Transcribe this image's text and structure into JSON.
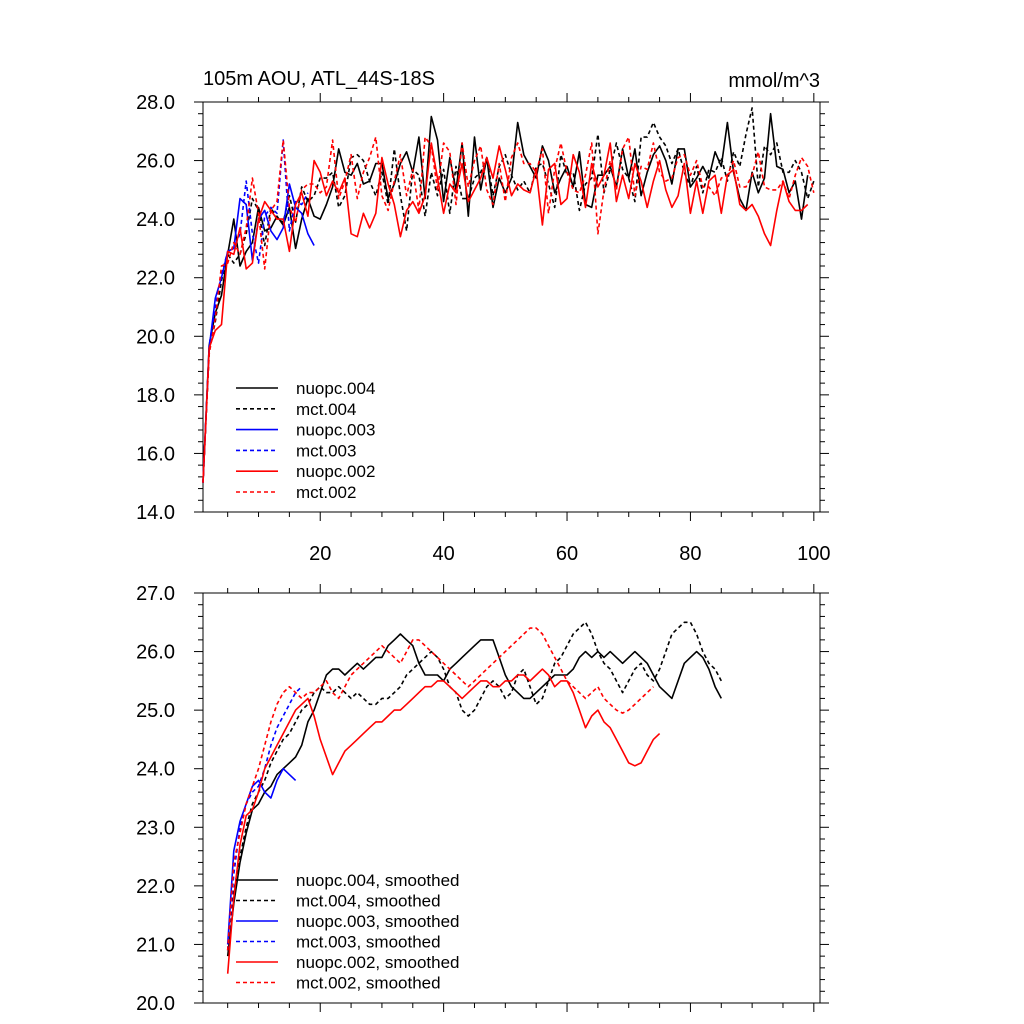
{
  "chart_data": [
    {
      "type": "line",
      "title": "105m AOU, ATL_44S-18S",
      "units": "mmol/m^3",
      "xlim": [
        1,
        101
      ],
      "ylim": [
        14,
        28
      ],
      "x_ticks": [
        20,
        40,
        60,
        80,
        100
      ],
      "x_tick_labels": [
        "20",
        "40",
        "60",
        "80",
        "100"
      ],
      "y_ticks": [
        14,
        16,
        18,
        20,
        22,
        24,
        26,
        28
      ],
      "y_tick_labels": [
        "14.0",
        "16.0",
        "18.0",
        "20.0",
        "22.0",
        "24.0",
        "26.0",
        "28.0"
      ],
      "legend_position": "lower-left",
      "series": [
        {
          "name": "nuopc.004",
          "color": "#000000",
          "dash": "solid",
          "x_start": 1,
          "values": [
            15.0,
            19.7,
            20.8,
            21.4,
            22.8,
            24.0,
            22.4,
            22.9,
            23.2,
            24.4,
            23.6,
            23.7,
            24.1,
            23.8,
            24.4,
            23.0,
            24.0,
            24.7,
            24.1,
            24.0,
            24.5,
            25.1,
            26.4,
            25.6,
            25.5,
            25.9,
            25.2,
            25.3,
            25.9,
            25.9,
            24.7,
            25.2,
            25.9,
            26.3,
            25.6,
            26.8,
            24.7,
            27.5,
            26.7,
            24.6,
            26.1,
            25.0,
            26.6,
            24.1,
            26.8,
            25.0,
            26.1,
            24.4,
            25.4,
            24.9,
            25.4,
            27.3,
            26.2,
            25.8,
            25.4,
            26.5,
            26.0,
            24.9,
            25.4,
            25.8,
            25.1,
            26.3,
            24.5,
            24.4,
            25.5,
            25.5,
            25.8,
            25.1,
            26.4,
            25.4,
            26.4,
            24.8,
            25.6,
            26.2,
            26.5,
            26.0,
            25.2,
            26.4,
            26.4,
            25.1,
            25.4,
            25.8,
            25.4,
            26.3,
            25.8,
            27.3,
            25.6,
            24.7,
            24.3,
            25.6,
            24.9,
            25.4,
            27.6,
            25.8,
            25.7,
            24.9,
            25.3,
            24.0,
            25.5
          ]
        },
        {
          "name": "mct.004",
          "color": "#000000",
          "dash": "dashed",
          "x_start": 1,
          "values": [
            15.0,
            19.5,
            20.5,
            21.9,
            22.8,
            22.5,
            22.8,
            23.5,
            24.7,
            24.3,
            23.1,
            24.4,
            24.0,
            23.9,
            24.8,
            23.9,
            25.1,
            24.6,
            24.8,
            25.4,
            25.4,
            25.6,
            24.4,
            24.8,
            26.1,
            26.2,
            26.0,
            25.3,
            24.8,
            25.6,
            24.5,
            26.4,
            24.8,
            23.6,
            25.7,
            25.5,
            24.1,
            25.6,
            24.8,
            25.7,
            24.2,
            25.8,
            24.7,
            24.7,
            25.4,
            25.6,
            26.1,
            24.8,
            25.8,
            26.2,
            25.5,
            25.0,
            25.3,
            24.9,
            25.8,
            25.9,
            25.2,
            24.4,
            26.2,
            25.5,
            25.6,
            24.3,
            25.2,
            25.4,
            26.9,
            24.9,
            25.7,
            26.6,
            25.7,
            25.4,
            24.6,
            26.8,
            26.8,
            27.3,
            26.8,
            26.5,
            25.9,
            26.4,
            25.6,
            25.1,
            25.8,
            24.9,
            25.7,
            25.6,
            26.1,
            25.3,
            26.3,
            25.8,
            26.9,
            27.8,
            25.1,
            26.5,
            26.2,
            26.6,
            25.6,
            25.6,
            26.0,
            25.6,
            24.7,
            25.3
          ]
        },
        {
          "name": "nuopc.003",
          "color": "#0000ff",
          "dash": "solid",
          "x_start": 1,
          "values": [
            15.0,
            19.6,
            21.3,
            22.0,
            22.9,
            23.0,
            24.7,
            24.5,
            22.6,
            24.0,
            24.3,
            23.6,
            23.3,
            23.7,
            25.2,
            24.4,
            24.2,
            23.5,
            23.1
          ]
        },
        {
          "name": "mct.003",
          "color": "#0000ff",
          "dash": "dashed",
          "x_start": 1,
          "values": [
            15.0,
            19.7,
            21.0,
            22.1,
            22.9,
            23.0,
            23.5,
            25.3,
            23.5,
            22.5,
            24.1,
            24.4,
            24.2,
            26.7,
            23.6,
            24.6,
            24.5,
            24.9
          ]
        },
        {
          "name": "nuopc.002",
          "color": "#ff0000",
          "dash": "solid",
          "x_start": 1,
          "values": [
            15.0,
            19.6,
            20.2,
            20.4,
            22.9,
            22.8,
            23.7,
            22.3,
            22.5,
            24.0,
            24.6,
            24.3,
            24.0,
            24.0,
            22.9,
            24.5,
            24.9,
            24.1,
            26.0,
            25.6,
            24.8,
            25.3,
            24.9,
            25.4,
            23.5,
            23.4,
            24.2,
            23.7,
            24.2,
            26.1,
            25.2,
            24.5,
            23.4,
            24.3,
            24.6,
            24.2,
            24.8,
            26.6,
            25.4,
            24.2,
            25.2,
            24.9,
            25.9,
            24.6,
            25.0,
            25.4,
            26.1,
            25.4,
            26.5,
            25.7,
            24.8,
            25.2,
            25.0,
            24.9,
            25.7,
            23.8,
            25.7,
            25.9,
            24.5,
            24.7,
            26.2,
            25.6,
            24.4,
            25.9,
            25.1,
            25.5,
            26.6,
            24.6,
            25.5,
            24.7,
            25.9,
            25.3,
            24.4,
            25.3,
            26.0,
            25.0,
            24.4,
            24.8,
            25.9,
            24.2,
            25.3,
            24.2,
            25.3,
            25.5,
            24.2,
            25.5,
            25.7,
            24.5,
            24.3,
            24.5,
            24.1,
            23.5,
            23.1,
            24.3,
            25.3,
            24.6,
            24.3,
            24.3,
            24.5
          ]
        },
        {
          "name": "mct.002",
          "color": "#ff0000",
          "dash": "dashed",
          "x_start": 1,
          "values": [
            15.0,
            19.4,
            20.6,
            22.4,
            22.5,
            23.2,
            22.8,
            23.7,
            25.4,
            24.2,
            22.3,
            24.3,
            24.6,
            26.7,
            24.4,
            23.9,
            25.0,
            25.2,
            25.2,
            24.9,
            25.1,
            26.7,
            24.7,
            25.3,
            26.2,
            24.7,
            25.6,
            26.1,
            26.8,
            24.8,
            24.3,
            25.3,
            26.2,
            24.8,
            25.7,
            24.3,
            26.8,
            26.5,
            25.0,
            26.6,
            26.3,
            24.5,
            26.6,
            25.1,
            26.0,
            26.5,
            25.0,
            24.5,
            25.9,
            24.6,
            26.1,
            26.6,
            25.9,
            25.9,
            25.6,
            26.4,
            24.2,
            25.7,
            26.6,
            25.6,
            25.0,
            24.9,
            25.5,
            26.6,
            23.5,
            25.0,
            26.0,
            25.0,
            26.4,
            26.8,
            24.8,
            25.8,
            25.7,
            26.6,
            25.6,
            25.3,
            25.4,
            26.1,
            26.2,
            25.5,
            26.0,
            25.1,
            25.1,
            24.8,
            25.4,
            25.5,
            26.0,
            25.1,
            25.1,
            25.5,
            26.3,
            25.1,
            25.0,
            25.0,
            25.3,
            24.7,
            25.5,
            26.1,
            25.8,
            24.9
          ]
        }
      ]
    },
    {
      "type": "line",
      "title": "",
      "units": "",
      "xlim": [
        1,
        101
      ],
      "ylim": [
        20,
        27
      ],
      "x_ticks": [
        20,
        40,
        60,
        80,
        100
      ],
      "x_tick_labels": [],
      "y_ticks": [
        20,
        21,
        22,
        23,
        24,
        25,
        26,
        27
      ],
      "y_tick_labels": [
        "20.0",
        "21.0",
        "22.0",
        "23.0",
        "24.0",
        "25.0",
        "26.0",
        "27.0"
      ],
      "legend_position": "lower-left",
      "series": [
        {
          "name": "nuopc.004, smoothed",
          "color": "#000000",
          "dash": "solid",
          "x_start": 5,
          "values": [
            20.8,
            21.7,
            22.4,
            22.9,
            23.3,
            23.4,
            23.6,
            23.7,
            23.9,
            24.0,
            24.1,
            24.2,
            24.4,
            24.8,
            25.0,
            25.3,
            25.6,
            25.7,
            25.7,
            25.6,
            25.7,
            25.8,
            25.7,
            25.8,
            25.9,
            25.9,
            26.1,
            26.2,
            26.3,
            26.2,
            26.1,
            25.8,
            25.6,
            25.6,
            25.6,
            25.5,
            25.7,
            25.8,
            25.9,
            26.0,
            26.1,
            26.2,
            26.2,
            26.2,
            25.9,
            25.6,
            25.4,
            25.3,
            25.2,
            25.2,
            25.3,
            25.4,
            25.5,
            25.6,
            25.6,
            25.6,
            25.7,
            25.9,
            26.0,
            25.9,
            26.0,
            25.9,
            26.0,
            25.9,
            25.8,
            25.9,
            26.0,
            25.9,
            25.8,
            25.6,
            25.4,
            25.3,
            25.2,
            25.5,
            25.8,
            25.9,
            26.0,
            25.9,
            25.7,
            25.4,
            25.2
          ]
        },
        {
          "name": "mct.004, smoothed",
          "color": "#000000",
          "dash": "dashed",
          "x_start": 5,
          "values": [
            20.9,
            21.9,
            22.5,
            23.0,
            23.4,
            23.6,
            23.8,
            24.1,
            24.3,
            24.5,
            24.6,
            24.8,
            25.0,
            25.1,
            25.3,
            25.4,
            25.3,
            25.3,
            25.4,
            25.3,
            25.2,
            25.3,
            25.2,
            25.1,
            25.1,
            25.2,
            25.2,
            25.3,
            25.4,
            25.6,
            25.7,
            25.8,
            25.9,
            26.0,
            25.9,
            25.7,
            25.4,
            25.3,
            25.0,
            24.9,
            25.0,
            25.2,
            25.4,
            25.5,
            25.4,
            25.2,
            25.3,
            25.6,
            25.7,
            25.4,
            25.1,
            25.2,
            25.5,
            25.8,
            25.9,
            26.1,
            26.3,
            26.4,
            26.5,
            26.3,
            26.0,
            25.8,
            25.7,
            25.5,
            25.3,
            25.5,
            25.7,
            25.8,
            25.6,
            25.5,
            25.7,
            26.0,
            26.3,
            26.4,
            26.5,
            26.5,
            26.3,
            26.0,
            25.8,
            25.7,
            25.5
          ]
        },
        {
          "name": "nuopc.003, smoothed",
          "color": "#0000ff",
          "dash": "solid",
          "x_start": 5,
          "values": [
            21.0,
            22.6,
            23.1,
            23.4,
            23.7,
            23.8,
            23.6,
            23.5,
            23.8,
            24.0,
            23.9,
            23.8
          ]
        },
        {
          "name": "mct.003, smoothed",
          "color": "#0000ff",
          "dash": "dashed",
          "x_start": 5,
          "values": [
            20.9,
            22.2,
            23.0,
            23.4,
            23.6,
            23.7,
            24.0,
            24.4,
            24.7,
            24.9,
            25.1,
            25.3,
            25.4
          ]
        },
        {
          "name": "nuopc.002, smoothed",
          "color": "#ff0000",
          "dash": "solid",
          "x_start": 5,
          "values": [
            20.5,
            21.8,
            22.7,
            23.2,
            23.3,
            23.6,
            24.0,
            24.2,
            24.4,
            24.6,
            24.8,
            25.0,
            25.1,
            25.2,
            24.9,
            24.5,
            24.2,
            23.9,
            24.1,
            24.3,
            24.4,
            24.5,
            24.6,
            24.7,
            24.8,
            24.8,
            24.9,
            25.0,
            25.0,
            25.1,
            25.2,
            25.3,
            25.4,
            25.4,
            25.5,
            25.5,
            25.4,
            25.3,
            25.2,
            25.3,
            25.4,
            25.5,
            25.5,
            25.4,
            25.4,
            25.5,
            25.5,
            25.6,
            25.6,
            25.5,
            25.6,
            25.7,
            25.6,
            25.4,
            25.5,
            25.5,
            25.3,
            25.0,
            24.7,
            24.9,
            25.0,
            24.8,
            24.7,
            24.5,
            24.3,
            24.1,
            24.05,
            24.1,
            24.3,
            24.5,
            24.6
          ]
        },
        {
          "name": "mct.002, smoothed",
          "color": "#ff0000",
          "dash": "dashed",
          "x_start": 5,
          "values": [
            20.9,
            22.4,
            22.9,
            23.4,
            23.7,
            24.0,
            24.4,
            24.8,
            25.1,
            25.3,
            25.4,
            25.3,
            25.2,
            25.3,
            25.3,
            25.4,
            25.5,
            25.3,
            25.2,
            25.4,
            25.6,
            25.7,
            25.8,
            25.9,
            26.0,
            26.1,
            26.0,
            25.9,
            25.8,
            26.0,
            26.2,
            26.2,
            26.1,
            26.0,
            25.9,
            25.8,
            25.7,
            25.6,
            25.5,
            25.4,
            25.5,
            25.6,
            25.7,
            25.8,
            25.9,
            26.0,
            26.1,
            26.2,
            26.3,
            26.4,
            26.4,
            26.3,
            26.1,
            25.9,
            25.7,
            25.5,
            25.4,
            25.3,
            25.2,
            25.3,
            25.4,
            25.2,
            25.1,
            25.0,
            24.95,
            25.0,
            25.1,
            25.2,
            25.3,
            25.4
          ]
        }
      ]
    }
  ]
}
